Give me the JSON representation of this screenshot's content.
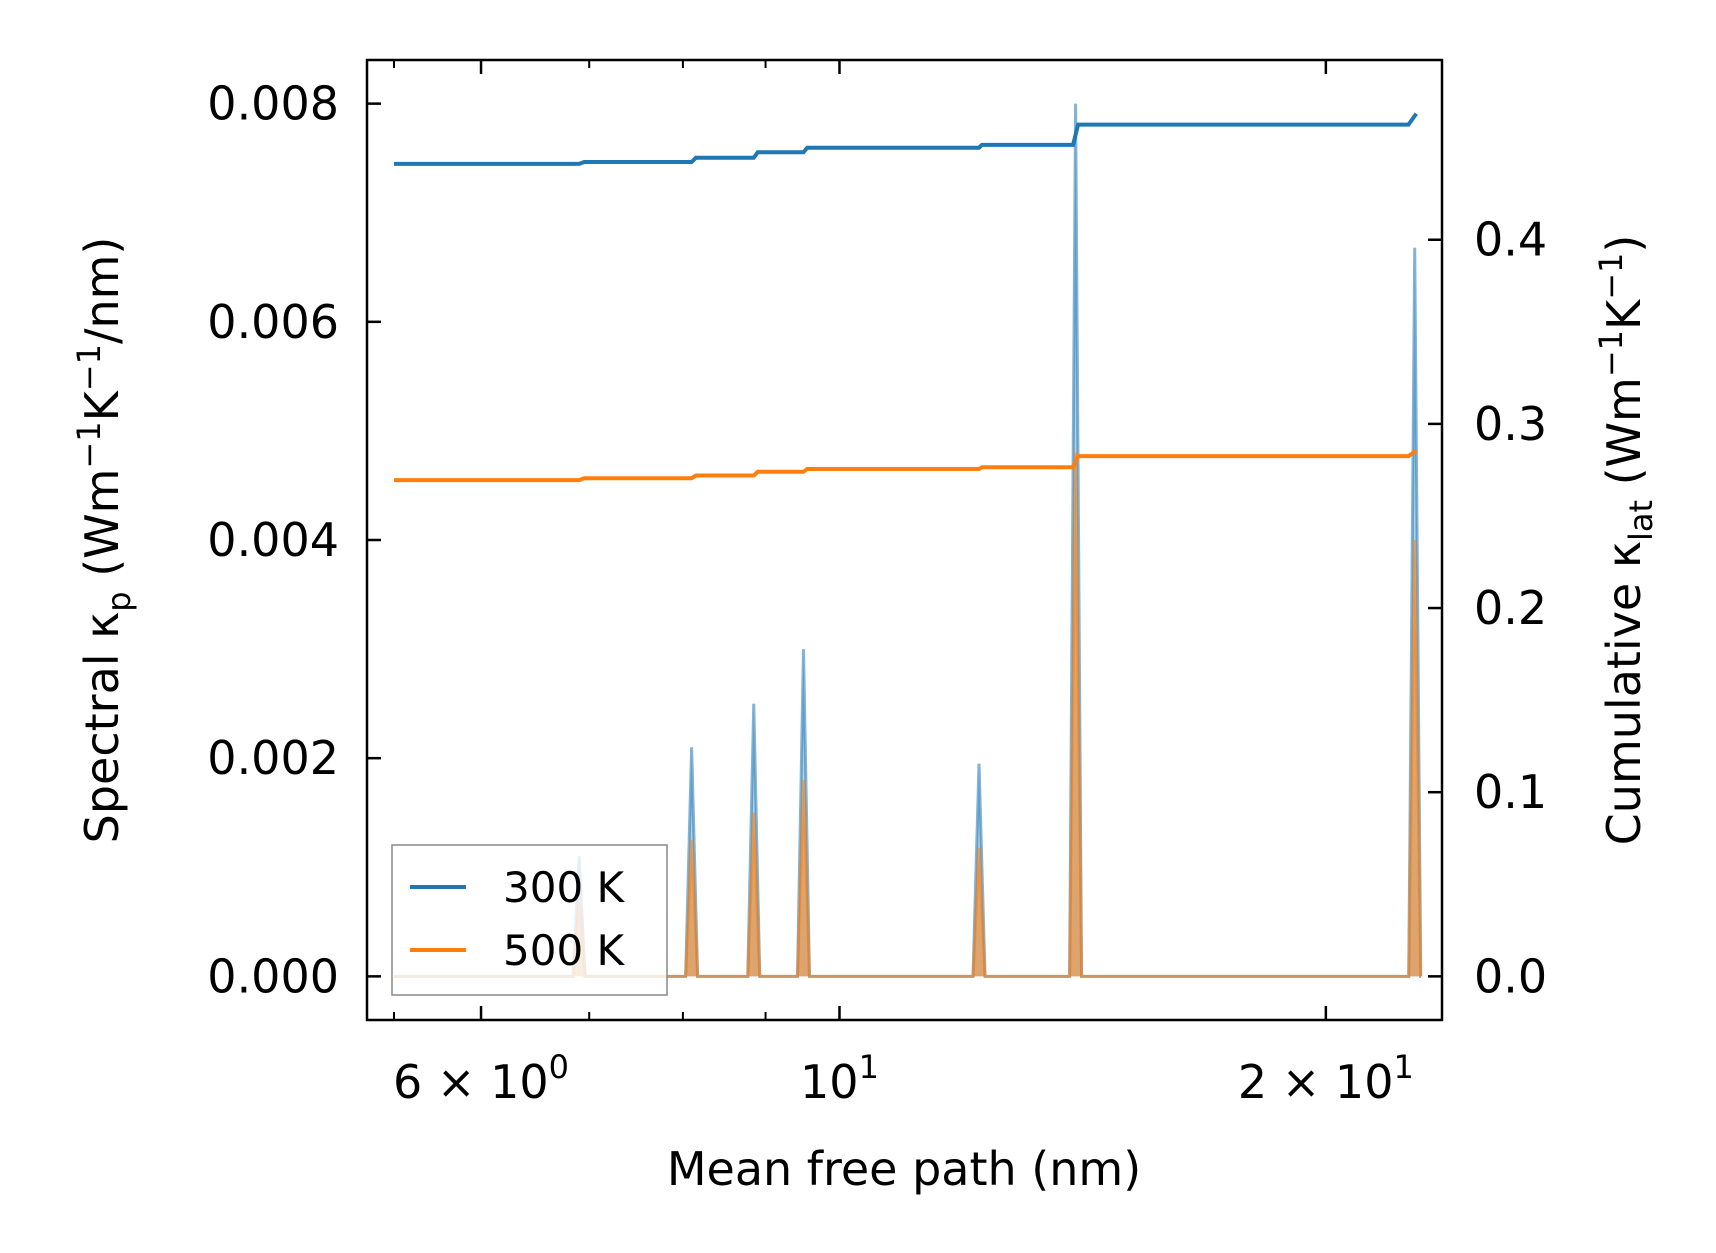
{
  "chart_data": {
    "type": "line",
    "xlabel": "Mean free path (nm)",
    "ylabel_left": {
      "main": "Spectral κ",
      "sub": "p",
      "unit_prefix": " (Wm",
      "sup1": "−1",
      "unit_mid": "K",
      "sup2": "−1",
      "unit_end": "/nm)"
    },
    "ylabel_right": {
      "main": "Cumulative κ",
      "sub": "lat",
      "unit_prefix": " (Wm",
      "sup1": "−1",
      "unit_mid": "K",
      "sup2": "−1",
      "unit_end": ")"
    },
    "x_scale": "log",
    "xlim": [
      5.1,
      23.6
    ],
    "ylim_left": [
      -0.0004,
      0.0084
    ],
    "ylim_right": [
      -0.0237,
      0.4976
    ],
    "x_ticks_major": [
      {
        "value": 6,
        "base": "6 × 10",
        "exp": "0"
      },
      {
        "value": 10,
        "base": "10",
        "exp": "1"
      },
      {
        "value": 20,
        "base": "2 × 10",
        "exp": "1"
      }
    ],
    "x_ticks_minor": [
      7,
      8,
      9,
      30
    ],
    "y_ticks_left": [
      "0.000",
      "0.002",
      "0.004",
      "0.006",
      "0.008"
    ],
    "y_ticks_left_values": [
      0,
      0.002,
      0.004,
      0.006,
      0.008
    ],
    "y_ticks_right": [
      "0.0",
      "0.1",
      "0.2",
      "0.3",
      "0.4"
    ],
    "y_ticks_right_values": [
      0,
      0.1,
      0.2,
      0.3,
      0.4
    ],
    "spectral_peaks": {
      "x": [
        6.9,
        8.1,
        8.85,
        9.5,
        12.2,
        14.0,
        22.7
      ],
      "series": [
        {
          "name": "300 K",
          "values": [
            0.0011,
            0.0021,
            0.0025,
            0.003,
            0.00195,
            0.008,
            0.00668
          ]
        },
        {
          "name": "500 K",
          "values": [
            0.0007,
            0.00125,
            0.0015,
            0.0018,
            0.00118,
            0.0048,
            0.004
          ]
        }
      ]
    },
    "series": [
      {
        "name": "300 K",
        "color": "#1f77b4",
        "x": [
          5.3,
          6.9,
          6.95,
          8.1,
          8.15,
          8.85,
          8.9,
          9.5,
          9.55,
          12.2,
          12.25,
          13.95,
          14.05,
          22.5,
          22.75
        ],
        "cumulative": [
          0.4412,
          0.4412,
          0.4422,
          0.4422,
          0.4445,
          0.4445,
          0.4475,
          0.4475,
          0.45,
          0.45,
          0.4515,
          0.4515,
          0.4625,
          0.4625,
          0.4685
        ]
      },
      {
        "name": "500 K",
        "color": "#ff7f0e",
        "x": [
          5.3,
          6.9,
          6.95,
          8.1,
          8.15,
          8.85,
          8.9,
          9.5,
          9.55,
          12.2,
          12.25,
          13.95,
          14.05,
          22.5,
          22.75
        ],
        "cumulative": [
          0.2695,
          0.2695,
          0.2705,
          0.2705,
          0.272,
          0.272,
          0.274,
          0.274,
          0.2755,
          0.2755,
          0.2765,
          0.2765,
          0.2825,
          0.2825,
          0.2855
        ]
      }
    ],
    "legend": {
      "position": "lower-left",
      "entries": [
        "300 K",
        "500 K"
      ]
    }
  }
}
